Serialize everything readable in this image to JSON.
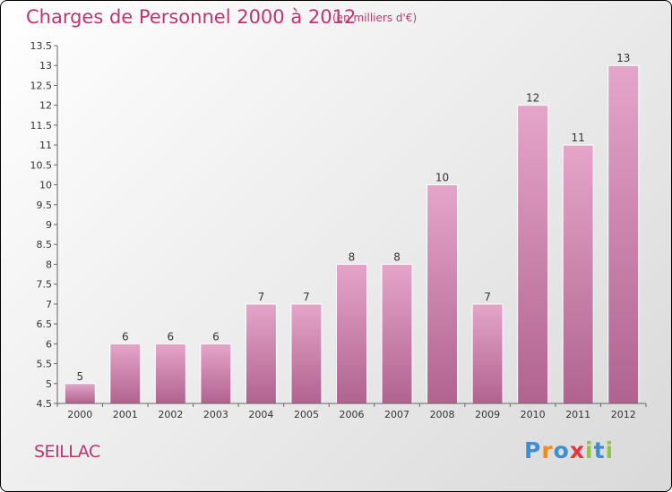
{
  "title": "Charges de Personnel 2000 à 2012",
  "subtitle": "(en milliers d'€)",
  "commune": "SEILLAC",
  "logo": {
    "letters": [
      "P",
      "r",
      "o",
      "x",
      "i",
      "t",
      "i"
    ],
    "colors": [
      "#3a8fd6",
      "#f08a1c",
      "#3a8fd6",
      "#e8333a",
      "#8dc63f",
      "#3a8fd6",
      "#8dc63f"
    ]
  },
  "colors": {
    "bar_fill_top": "#e5a5c9",
    "bar_fill_bottom": "#b0638f",
    "title": "#c0346f"
  },
  "chart_data": {
    "type": "bar",
    "categories": [
      "2000",
      "2001",
      "2002",
      "2003",
      "2004",
      "2005",
      "2006",
      "2007",
      "2008",
      "2009",
      "2010",
      "2011",
      "2012"
    ],
    "values": [
      5,
      6,
      6,
      6,
      7,
      7,
      8,
      8,
      10,
      7,
      12,
      11,
      13
    ],
    "ylim": [
      4.5,
      13.5
    ],
    "yticks": [
      4.5,
      5,
      5.5,
      6,
      6.5,
      7,
      7.5,
      8,
      8.5,
      9,
      9.5,
      10,
      10.5,
      11,
      11.5,
      12,
      12.5,
      13,
      13.5
    ],
    "ytick_labels": [
      "4.5",
      "5",
      "5.5",
      "6",
      "6.5",
      "7",
      "7.5",
      "8",
      "8.5",
      "9",
      "9.5",
      "10",
      "10.5",
      "11",
      "11.5",
      "12",
      "12.5",
      "13",
      "13.5"
    ],
    "grid": false,
    "title": "Charges de Personnel 2000 à 2012",
    "xlabel": "",
    "ylabel": ""
  }
}
